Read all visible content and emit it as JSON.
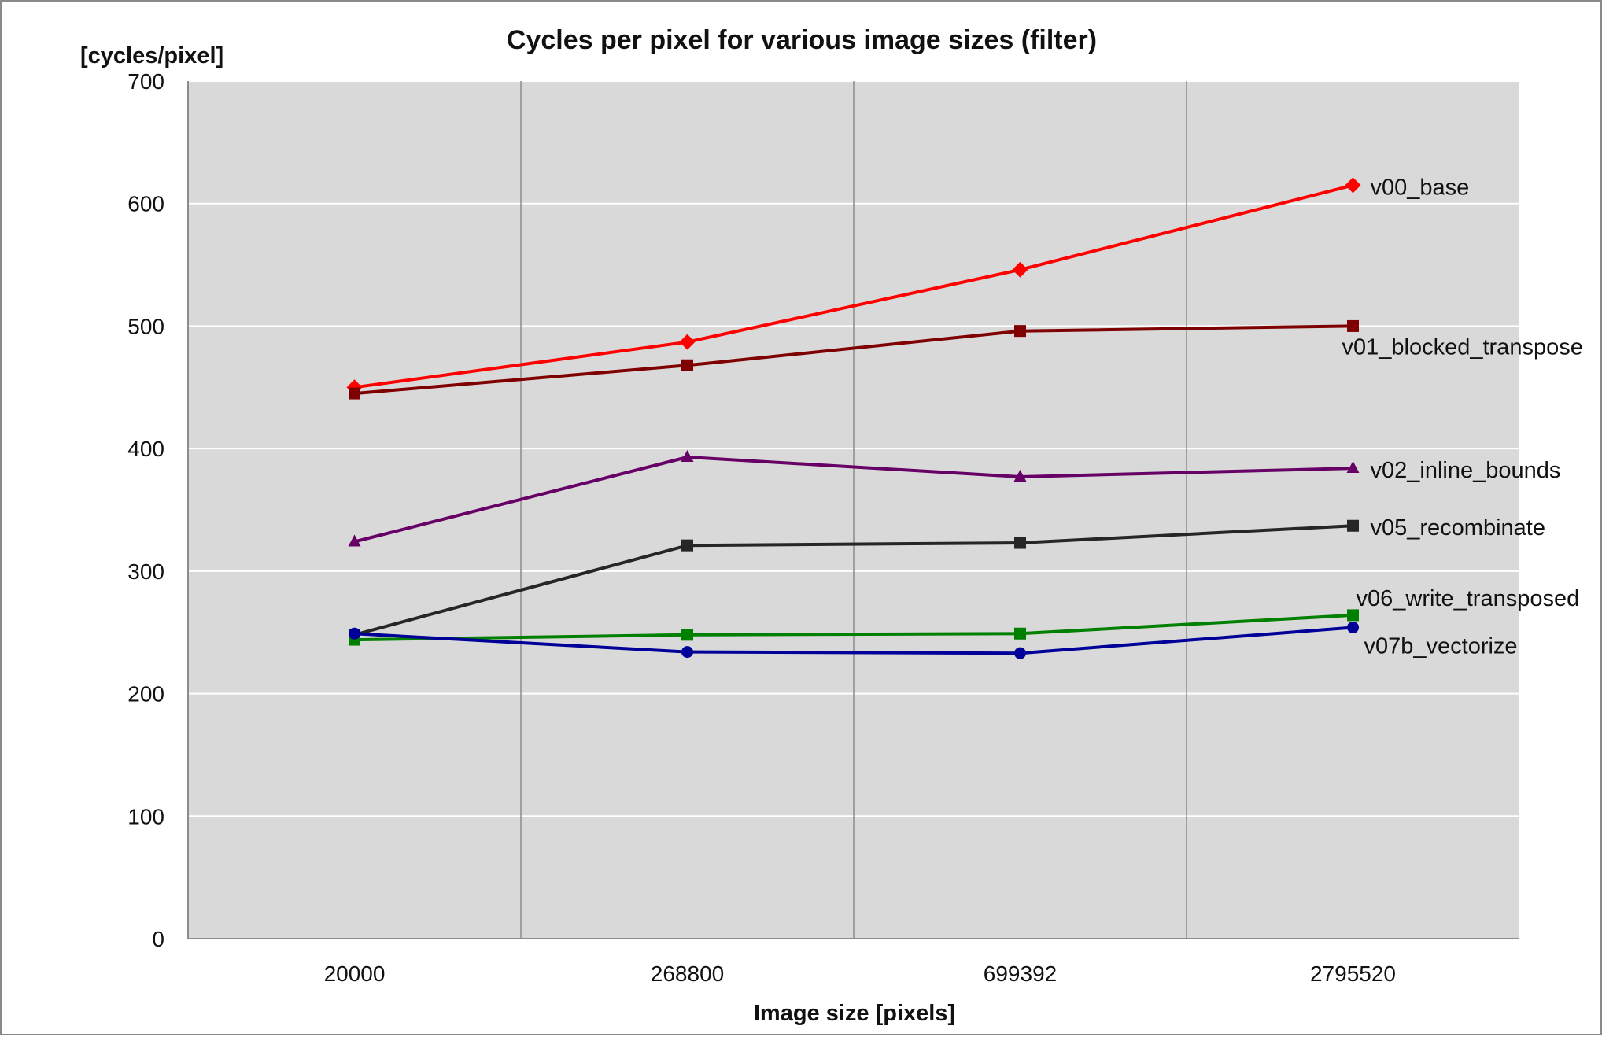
{
  "chart_data": {
    "type": "line",
    "title": "Cycles per pixel for various image sizes (filter)",
    "ylabel": "[cycles/pixel]",
    "xlabel": "Image size [pixels]",
    "categories": [
      "20000",
      "268800",
      "699392",
      "2795520"
    ],
    "ylim": [
      0,
      700
    ],
    "yticks": [
      0,
      100,
      200,
      300,
      400,
      500,
      600,
      700
    ],
    "grid": true,
    "plot_background": "#d9d9d9",
    "legend": "labels at line ends (right)",
    "series": [
      {
        "name": "v00_base",
        "values": [
          450,
          487,
          546,
          615
        ],
        "color": "#ff0000",
        "marker": "diamond"
      },
      {
        "name": "v01_blocked_transpose",
        "values": [
          445,
          468,
          496,
          500
        ],
        "color": "#7f0000",
        "marker": "square"
      },
      {
        "name": "v02_inline_bounds",
        "values": [
          324,
          393,
          377,
          384
        ],
        "color": "#660066",
        "marker": "triangle"
      },
      {
        "name": "v05_recombinate",
        "values": [
          248,
          321,
          323,
          337
        ],
        "color": "#262626",
        "marker": "square"
      },
      {
        "name": "v06_write_transposed",
        "values": [
          244,
          248,
          249,
          264
        ],
        "color": "#008000",
        "marker": "square"
      },
      {
        "name": "v07b_vectorize",
        "values": [
          249,
          234,
          233,
          254
        ],
        "color": "#000099",
        "marker": "circle"
      }
    ]
  }
}
